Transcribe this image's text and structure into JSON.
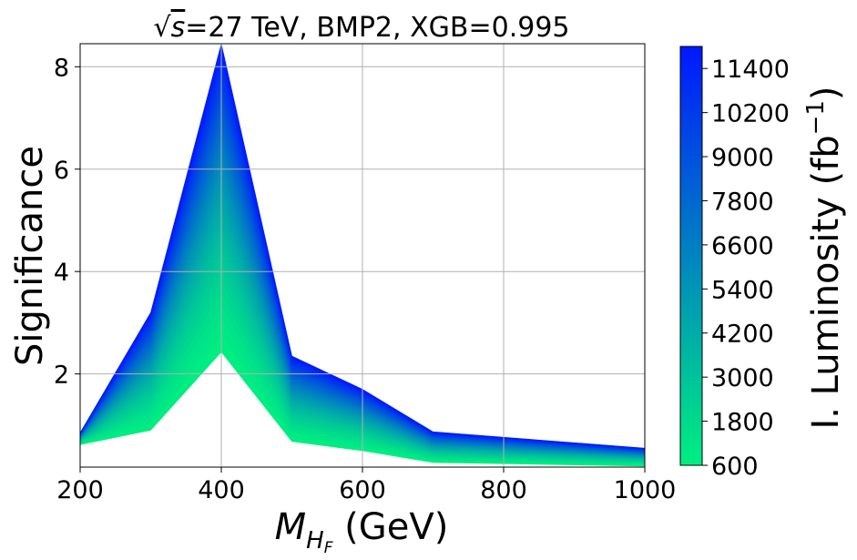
{
  "chart_data": {
    "type": "area",
    "title_parts": {
      "sqrt_sym": "√",
      "s_var": "s",
      "rest": "=27 TeV, BMP2, XGB=0.995"
    },
    "xlabel_parts": {
      "var": "M",
      "sub": "H",
      "subsub": "F",
      "unit": " (GeV)"
    },
    "ylabel": "Significance",
    "xlim": [
      200,
      1000
    ],
    "ylim": [
      0.18,
      8.45
    ],
    "xticks": [
      200,
      400,
      600,
      800,
      1000
    ],
    "xtick_labels": [
      "200",
      "400",
      "600",
      "800",
      "1000"
    ],
    "yticks": [
      2,
      4,
      6,
      8
    ],
    "ytick_labels": [
      "2",
      "4",
      "6",
      "8"
    ],
    "grid": true,
    "x": [
      200,
      300,
      400,
      500,
      600,
      700,
      1000
    ],
    "significance_min_luminosity": [
      0.62,
      0.9,
      2.43,
      0.68,
      0.5,
      0.27,
      0.2
    ],
    "significance_max_luminosity": [
      0.85,
      3.2,
      8.45,
      2.35,
      1.7,
      0.87,
      0.55
    ],
    "colorbar": {
      "label_main": "I. Luminosity (fb",
      "label_sup": "−1",
      "label_end": ")",
      "min": 600,
      "max": 12000,
      "ticks": [
        600,
        1800,
        3000,
        4200,
        5400,
        6600,
        7800,
        9000,
        10200,
        11400
      ],
      "tick_labels": [
        "600",
        "1800",
        "3000",
        "4200",
        "5400",
        "6600",
        "7800",
        "9000",
        "10200",
        "11400"
      ],
      "color_low": "#00f080",
      "color_high": "#0018ff"
    }
  }
}
